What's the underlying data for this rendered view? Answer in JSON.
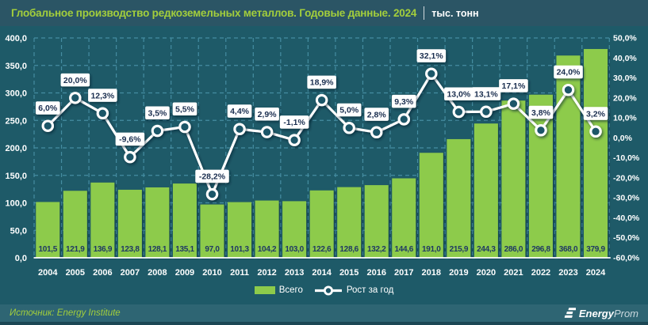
{
  "header": {
    "title": "Глобальное производство редкоземельных металлов. Годовые данные. 2024",
    "unit": "тыс. тонн"
  },
  "chart_data": {
    "type": "bar+line",
    "title": "Глобальное производство редкоземельных металлов. Годовые данные. 2024 (тыс. тонн)",
    "categories": [
      "2004",
      "2005",
      "2006",
      "2007",
      "2008",
      "2009",
      "2010",
      "2011",
      "2012",
      "2013",
      "2014",
      "2015",
      "2016",
      "2017",
      "2018",
      "2019",
      "2020",
      "2021",
      "2022",
      "2023",
      "2024"
    ],
    "series": [
      {
        "name": "Всего",
        "type": "bar",
        "unit": "тыс. тонн",
        "values": [
          101.5,
          121.9,
          136.9,
          123.8,
          128.1,
          135.1,
          97.0,
          101.3,
          104.2,
          103.0,
          122.6,
          128.6,
          132.2,
          144.6,
          191.0,
          215.9,
          244.3,
          286.0,
          296.8,
          368.0,
          379.9
        ]
      },
      {
        "name": "Рост за год",
        "type": "line",
        "unit": "%",
        "values": [
          6.0,
          20.0,
          12.3,
          -9.6,
          3.5,
          5.5,
          -28.2,
          4.4,
          2.9,
          -1.1,
          18.9,
          5.0,
          2.8,
          9.3,
          32.1,
          13.0,
          13.1,
          17.1,
          3.8,
          24.0,
          3.2
        ]
      }
    ],
    "left_axis": {
      "min": 0,
      "max": 400,
      "step": 50,
      "tick_format": "ru-decimal-1"
    },
    "right_axis": {
      "min": -60,
      "max": 50,
      "step": 10,
      "unit": "%",
      "tick_format": "ru-decimal-1-percent"
    },
    "grid": true,
    "legend_position": "bottom"
  },
  "footer": {
    "source": "Источник: Energy Institute",
    "logo_bold": "Energy",
    "logo_light": "Prom"
  },
  "colors": {
    "background": "#1E5A68",
    "header_bg": "#2B5565",
    "footer_bg": "#2E6573",
    "bar": "#8DCB4B",
    "title_green": "#A3CE3C",
    "grid": "#4C97AC",
    "line": "#FFFFFF",
    "marker_fill": "#1D5668",
    "label_navy": "#1F3864",
    "axis_text": "#FFFFFF"
  }
}
